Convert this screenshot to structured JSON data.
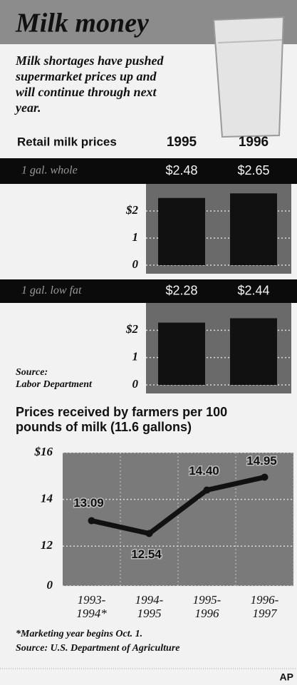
{
  "title": "Milk money",
  "subtitle": "Milk shortages have pushed\nsupermarket prices up and\nwill continue through next\nyear.",
  "credit": "AP",
  "chart_data": [
    {
      "type": "bar",
      "title": "Retail milk prices",
      "categories": [
        "1995",
        "1996"
      ],
      "series": [
        {
          "name": "1 gal. whole",
          "color": "#111111",
          "values": [
            2.48,
            2.65
          ],
          "value_labels": [
            "$2.48",
            "$2.65"
          ]
        },
        {
          "name": "1 gal. low fat",
          "color": "#111111",
          "values": [
            2.28,
            2.44
          ],
          "value_labels": [
            "$2.28",
            "$2.44"
          ]
        }
      ],
      "ylim": [
        0,
        3
      ],
      "yticks": [
        {
          "value": 2,
          "label": "$2"
        },
        1,
        0
      ],
      "grid": true,
      "source": "Source:\nLabor Department"
    },
    {
      "type": "line",
      "title": "Prices received by farmers per 100\npounds of milk (11.6 gallons)",
      "categories": [
        "1993-\n1994*",
        "1994-\n1995",
        "1995-\n1996",
        "1996-\n1997"
      ],
      "values": [
        13.09,
        12.54,
        14.4,
        14.95
      ],
      "value_labels": [
        "13.09",
        "12.54",
        "14.40",
        "14.95"
      ],
      "color": "#111111",
      "ylim": [
        10.3,
        16
      ],
      "yticks": [
        {
          "value": 16,
          "label": "$16"
        },
        14,
        12,
        0
      ],
      "axis_break": true,
      "grid": true,
      "footnote": "*Marketing year begins Oct. 1.",
      "source": "Source: U.S. Department of Agriculture"
    }
  ]
}
